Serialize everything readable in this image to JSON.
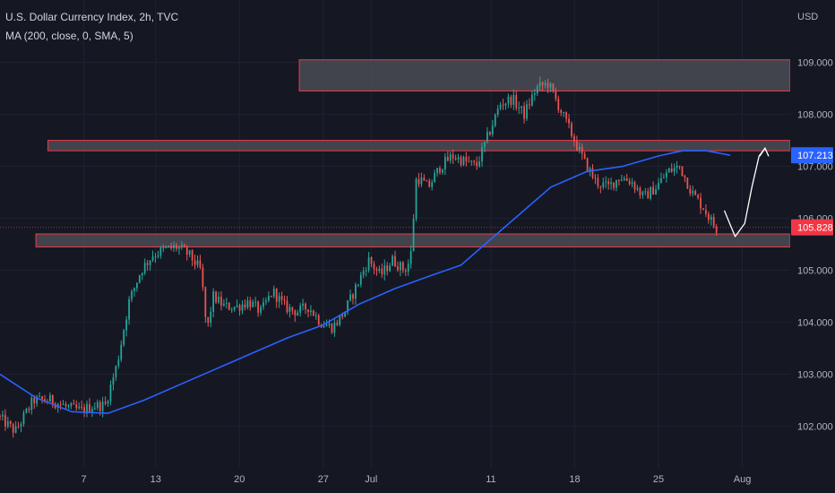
{
  "header": {
    "title": "U.S. Dollar Currency Index, 2h, TVC",
    "indicator": "MA (200, close, 0, SMA, 5)"
  },
  "colors": {
    "background": "#151823",
    "up": "#26a69a",
    "down": "#ef5350",
    "ma": "#2962ff",
    "zone_fill": "#4a4c55",
    "zone_border": "#f23645",
    "arrow": "#ffffff",
    "price_badge": "#f23645",
    "ma_badge": "#2962ff",
    "axis_text": "#b2b5be"
  },
  "chart_data": {
    "type": "candlestick",
    "currency_label": "USD",
    "y_ticks": [
      "109.000",
      "108.000",
      "107.000",
      "106.000",
      "105.000",
      "104.000",
      "103.000",
      "102.000"
    ],
    "y_tick_values": [
      109,
      108,
      107,
      106,
      105,
      104,
      103,
      102
    ],
    "ylim": [
      101.2,
      110.2
    ],
    "x_ticks": [
      "7",
      "13",
      "20",
      "27",
      "Jul",
      "11",
      "18",
      "25",
      "Aug"
    ],
    "x_tick_days": [
      7,
      13,
      20,
      27,
      31,
      41,
      48,
      55,
      62
    ],
    "xlim": [
      0,
      66
    ],
    "last_price": {
      "label": "105.828",
      "value": 105.828
    },
    "ma_value": {
      "label": "107.213",
      "value": 107.213
    },
    "price_anchors": [
      [
        0,
        102.2
      ],
      [
        1.5,
        101.9
      ],
      [
        3,
        102.5
      ],
      [
        4.5,
        102.5
      ],
      [
        6,
        102.35
      ],
      [
        7,
        102.3
      ],
      [
        8,
        102.4
      ],
      [
        9,
        102.4
      ],
      [
        10,
        103.2
      ],
      [
        11,
        104.4
      ],
      [
        12,
        105.0
      ],
      [
        13,
        105.3
      ],
      [
        14,
        105.4
      ],
      [
        15,
        105.45
      ],
      [
        16,
        105.3
      ],
      [
        17,
        105.0
      ],
      [
        17.5,
        103.8
      ],
      [
        18,
        104.5
      ],
      [
        19,
        104.3
      ],
      [
        20,
        104.3
      ],
      [
        21,
        104.4
      ],
      [
        22,
        104.2
      ],
      [
        23,
        104.6
      ],
      [
        24,
        104.3
      ],
      [
        25,
        104.2
      ],
      [
        26,
        104.3
      ],
      [
        27,
        104.0
      ],
      [
        28,
        103.9
      ],
      [
        29,
        104.2
      ],
      [
        30,
        104.7
      ],
      [
        31,
        105.2
      ],
      [
        32,
        104.9
      ],
      [
        33,
        105.2
      ],
      [
        34,
        105.0
      ],
      [
        34.5,
        105.2
      ],
      [
        35,
        106.8
      ],
      [
        36,
        106.6
      ],
      [
        37,
        107.0
      ],
      [
        38,
        107.2
      ],
      [
        39,
        107.1
      ],
      [
        40,
        107.0
      ],
      [
        41,
        107.6
      ],
      [
        42,
        108.2
      ],
      [
        43,
        108.3
      ],
      [
        44,
        108.0
      ],
      [
        45,
        108.5
      ],
      [
        46,
        108.6
      ],
      [
        47,
        108.1
      ],
      [
        48,
        107.6
      ],
      [
        49,
        107.1
      ],
      [
        50,
        106.7
      ],
      [
        51,
        106.6
      ],
      [
        52,
        106.8
      ],
      [
        53,
        106.7
      ],
      [
        54,
        106.4
      ],
      [
        55,
        106.6
      ],
      [
        56,
        106.9
      ],
      [
        57,
        107.0
      ],
      [
        58,
        106.5
      ],
      [
        59,
        106.2
      ],
      [
        60,
        105.8
      ]
    ],
    "moving_average": [
      [
        0,
        103.0
      ],
      [
        3,
        102.55
      ],
      [
        6,
        102.28
      ],
      [
        9,
        102.25
      ],
      [
        12,
        102.5
      ],
      [
        15,
        102.8
      ],
      [
        18,
        103.1
      ],
      [
        21,
        103.4
      ],
      [
        24,
        103.7
      ],
      [
        27,
        103.95
      ],
      [
        30,
        104.35
      ],
      [
        33,
        104.65
      ],
      [
        36,
        104.9
      ],
      [
        38.5,
        105.1
      ],
      [
        40,
        105.4
      ],
      [
        43,
        106.0
      ],
      [
        46,
        106.6
      ],
      [
        49,
        106.9
      ],
      [
        52,
        107.0
      ],
      [
        55,
        107.2
      ],
      [
        57,
        107.3
      ],
      [
        59,
        107.3
      ],
      [
        61,
        107.213
      ]
    ],
    "zones": [
      {
        "x_start": 25,
        "x_end": 66,
        "y_low": 108.45,
        "y_high": 109.05
      },
      {
        "x_start": 4,
        "x_end": 66,
        "y_low": 107.3,
        "y_high": 107.5
      },
      {
        "x_start": 3,
        "x_end": 66,
        "y_low": 105.45,
        "y_high": 105.7
      }
    ],
    "projection": [
      [
        60.5,
        106.15
      ],
      [
        61.4,
        105.65
      ],
      [
        62.2,
        105.9
      ],
      [
        62.8,
        106.6
      ],
      [
        63.4,
        107.2
      ],
      [
        63.9,
        107.35
      ]
    ]
  }
}
